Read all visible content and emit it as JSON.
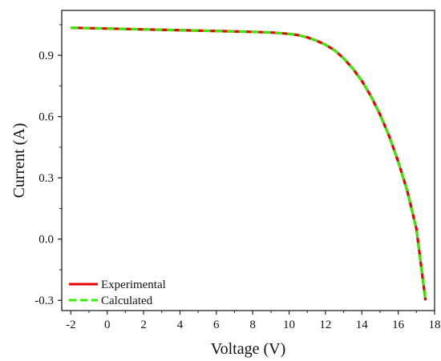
{
  "chart_data": {
    "type": "line",
    "xlabel": "Voltage (V)",
    "ylabel": "Current (A)",
    "xlim": [
      -2.5,
      18
    ],
    "ylim": [
      -0.35,
      1.12
    ],
    "xticks": [
      -2,
      0,
      2,
      4,
      6,
      8,
      10,
      12,
      14,
      16,
      18
    ],
    "yticks": [
      -0.3,
      0.0,
      0.3,
      0.6,
      0.9
    ],
    "xtick_labels": [
      "-2",
      "0",
      "2",
      "4",
      "6",
      "8",
      "10",
      "12",
      "14",
      "16",
      "18"
    ],
    "ytick_labels": [
      "-0.3",
      "0.0",
      "0.3",
      "0.6",
      "0.9"
    ],
    "grid": false,
    "legend_position": "bottom-left",
    "series": [
      {
        "name": "Experimental",
        "color": "#e60000",
        "dash": "solid",
        "x": [
          -2.0,
          -1.0,
          0.0,
          1.0,
          2.0,
          3.0,
          4.0,
          5.0,
          6.0,
          7.0,
          8.0,
          9.0,
          10.0,
          10.5,
          11.0,
          11.5,
          12.0,
          12.5,
          13.0,
          13.5,
          14.0,
          14.5,
          15.0,
          15.5,
          16.0,
          16.5,
          17.0,
          17.5
        ],
        "y": [
          1.035,
          1.033,
          1.031,
          1.029,
          1.027,
          1.025,
          1.023,
          1.021,
          1.019,
          1.017,
          1.015,
          1.012,
          1.005,
          0.999,
          0.988,
          0.972,
          0.952,
          0.925,
          0.885,
          0.835,
          0.775,
          0.7,
          0.61,
          0.505,
          0.38,
          0.235,
          0.05,
          -0.3
        ]
      },
      {
        "name": "Calculated",
        "color": "#33ee00",
        "dash": "dashed",
        "x": [
          -2.0,
          -1.0,
          0.0,
          1.0,
          2.0,
          3.0,
          4.0,
          5.0,
          6.0,
          7.0,
          8.0,
          9.0,
          10.0,
          10.5,
          11.0,
          11.5,
          12.0,
          12.5,
          13.0,
          13.5,
          14.0,
          14.5,
          15.0,
          15.5,
          16.0,
          16.5,
          17.0,
          17.5
        ],
        "y": [
          1.035,
          1.033,
          1.031,
          1.029,
          1.027,
          1.025,
          1.023,
          1.021,
          1.019,
          1.017,
          1.015,
          1.012,
          1.005,
          0.999,
          0.988,
          0.972,
          0.952,
          0.925,
          0.885,
          0.835,
          0.775,
          0.7,
          0.61,
          0.505,
          0.38,
          0.235,
          0.05,
          -0.3
        ]
      }
    ]
  }
}
